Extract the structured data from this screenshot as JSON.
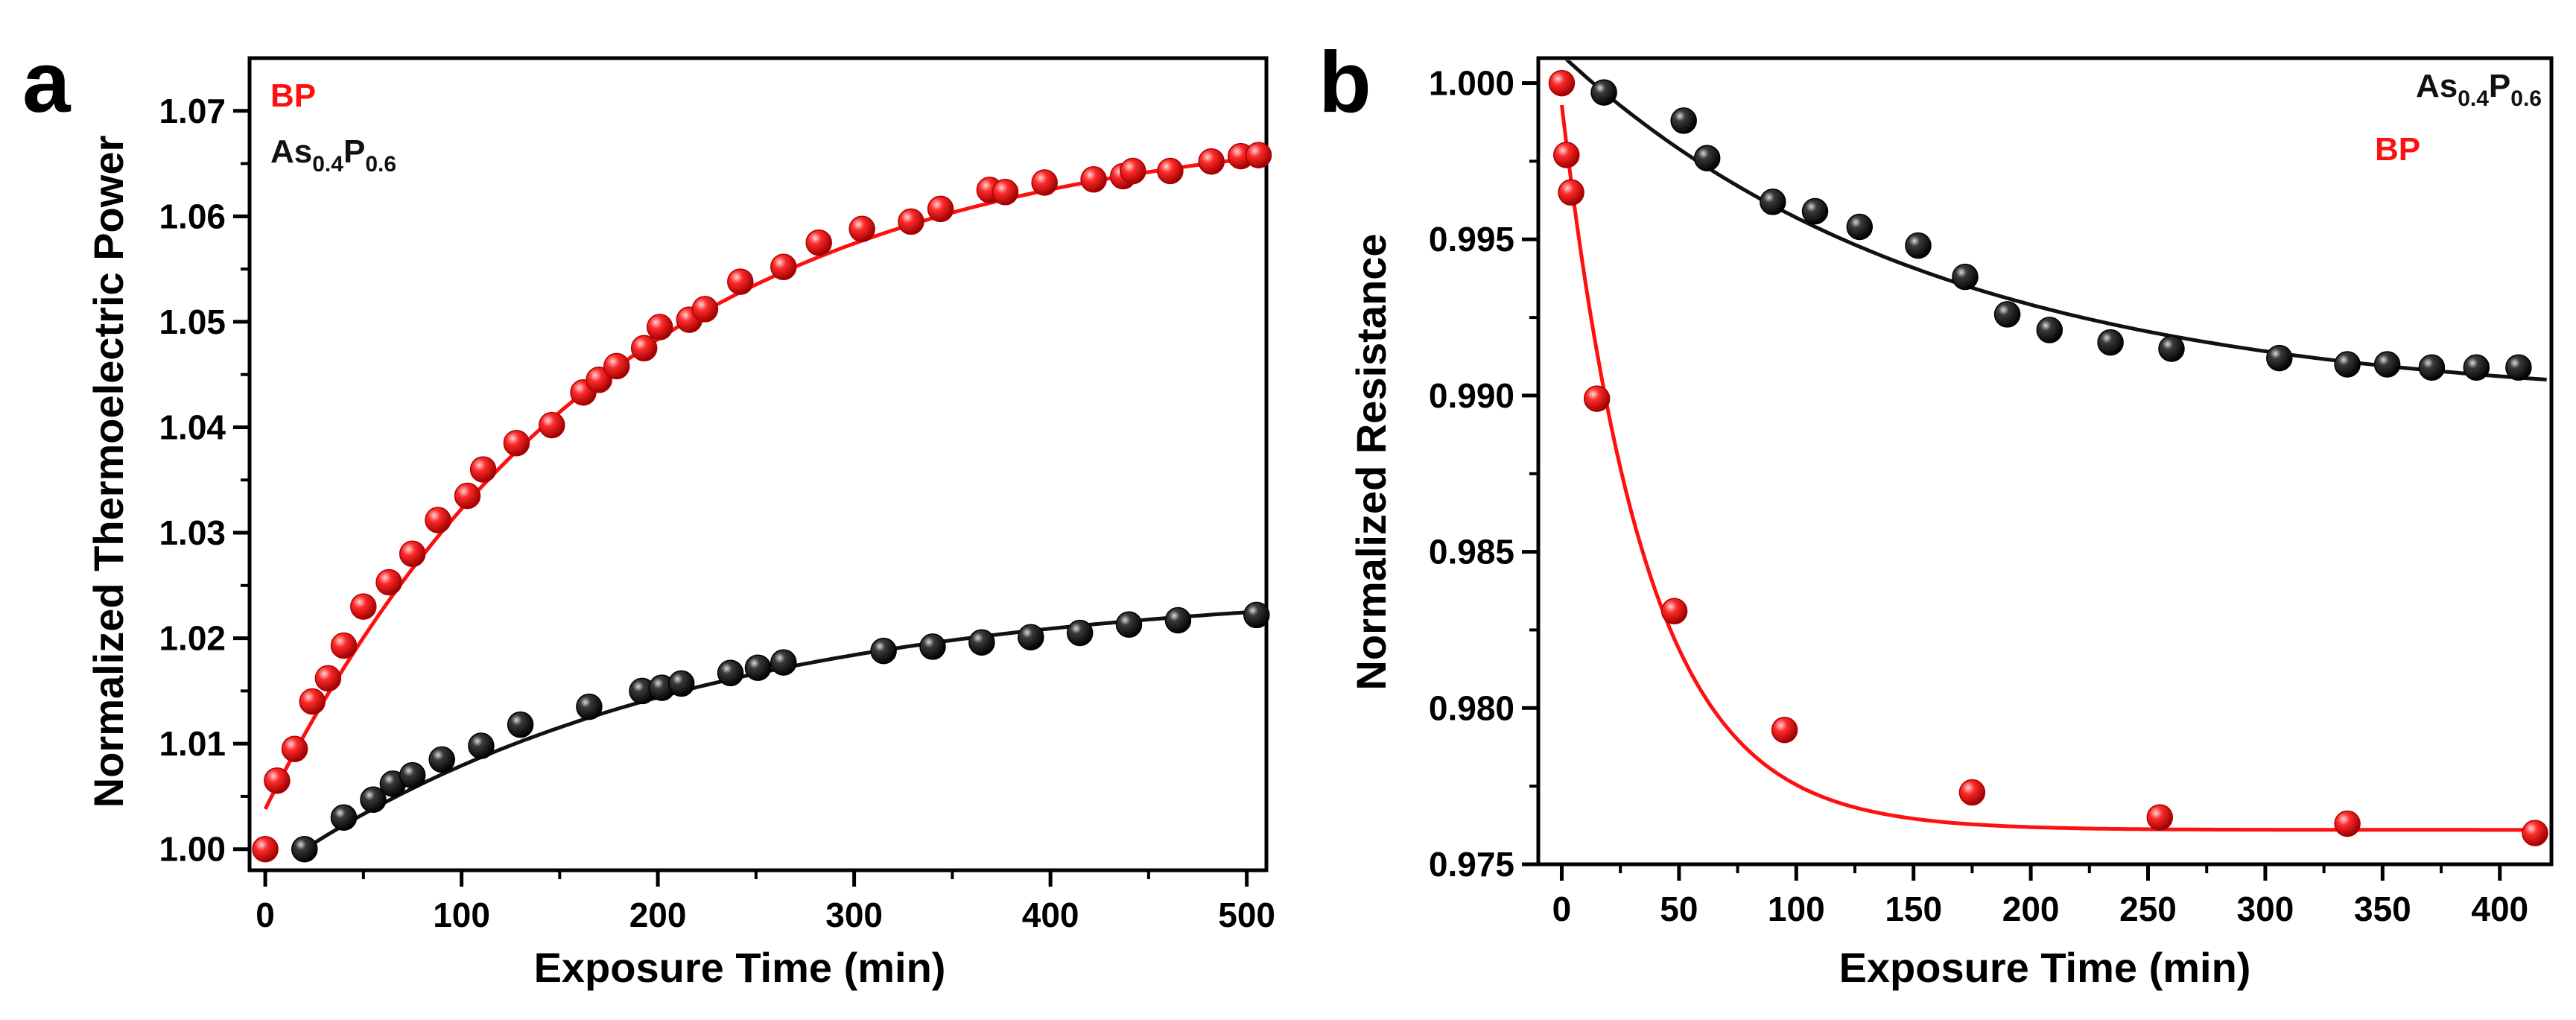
{
  "colors": {
    "bp": "#ff1010",
    "as": "#111111",
    "axis": "#000000"
  },
  "chart_data": [
    {
      "type": "scatter",
      "panel_label": "a",
      "xlabel": "Exposure Time (min)",
      "ylabel": "Normalized Thermoelectric Power",
      "xlim": [
        -8,
        510
      ],
      "ylim": [
        0.998,
        1.075
      ],
      "xticks": [
        0,
        100,
        200,
        300,
        400,
        500
      ],
      "yticks": [
        1.0,
        1.01,
        1.02,
        1.03,
        1.04,
        1.05,
        1.06,
        1.07
      ],
      "ytick_labels": [
        "1.00",
        "1.01",
        "1.02",
        "1.03",
        "1.04",
        "1.05",
        "1.06",
        "1.07"
      ],
      "legend_position": "top-left",
      "legend": [
        {
          "name": "BP",
          "sub": "",
          "tail": "",
          "tail_sub": "",
          "color_key": "bp"
        },
        {
          "name": "As",
          "sub": "0.4",
          "tail": "P",
          "tail_sub": "0.6",
          "color_key": "as"
        }
      ],
      "series": [
        {
          "name": "BP",
          "color_key": "bp",
          "fit": {
            "model": "rise",
            "a": 1.0038,
            "b": 0.0654,
            "tau": 175,
            "x0": 0,
            "x1": 505
          },
          "points": [
            [
              0,
              1.0
            ],
            [
              6,
              1.0065
            ],
            [
              15,
              1.0095
            ],
            [
              24,
              1.014
            ],
            [
              32,
              1.0162
            ],
            [
              40,
              1.0193
            ],
            [
              50,
              1.023
            ],
            [
              63,
              1.0253
            ],
            [
              75,
              1.028
            ],
            [
              88,
              1.0312
            ],
            [
              103,
              1.0335
            ],
            [
              111,
              1.036
            ],
            [
              128,
              1.0385
            ],
            [
              146,
              1.0402
            ],
            [
              162,
              1.0433
            ],
            [
              170,
              1.0445
            ],
            [
              179,
              1.0458
            ],
            [
              193,
              1.0475
            ],
            [
              201,
              1.0495
            ],
            [
              216,
              1.0502
            ],
            [
              224,
              1.0512
            ],
            [
              242,
              1.0538
            ],
            [
              264,
              1.0552
            ],
            [
              282,
              1.0575
            ],
            [
              304,
              1.0588
            ],
            [
              329,
              1.0595
            ],
            [
              344,
              1.0607
            ],
            [
              369,
              1.0625
            ],
            [
              377,
              1.0623
            ],
            [
              397,
              1.0632
            ],
            [
              422,
              1.0635
            ],
            [
              437,
              1.0638
            ],
            [
              442,
              1.0643
            ],
            [
              461,
              1.0643
            ],
            [
              482,
              1.0652
            ],
            [
              497,
              1.0657
            ],
            [
              506,
              1.0658
            ]
          ]
        },
        {
          "name": "As0.4P0.6",
          "color_key": "as",
          "fit": {
            "model": "rise",
            "a": 1.0,
            "b": 0.025,
            "tau": 210,
            "x0": 20,
            "x1": 505
          },
          "points": [
            [
              20,
              1.0
            ],
            [
              40,
              1.003
            ],
            [
              55,
              1.0047
            ],
            [
              65,
              1.0062
            ],
            [
              75,
              1.007
            ],
            [
              90,
              1.0085
            ],
            [
              110,
              1.0098
            ],
            [
              130,
              1.0118
            ],
            [
              165,
              1.0135
            ],
            [
              192,
              1.015
            ],
            [
              202,
              1.0153
            ],
            [
              212,
              1.0157
            ],
            [
              237,
              1.0167
            ],
            [
              251,
              1.0172
            ],
            [
              264,
              1.0177
            ],
            [
              315,
              1.0188
            ],
            [
              340,
              1.0192
            ],
            [
              365,
              1.0196
            ],
            [
              390,
              1.0201
            ],
            [
              415,
              1.0205
            ],
            [
              440,
              1.0213
            ],
            [
              465,
              1.0217
            ],
            [
              505,
              1.0222
            ]
          ]
        }
      ]
    },
    {
      "type": "scatter",
      "panel_label": "b",
      "xlabel": "Exposure Time (min)",
      "ylabel": "Normalized Resistance",
      "xlim": [
        -10,
        422
      ],
      "ylim": [
        0.975,
        1.0008
      ],
      "xticks": [
        0,
        50,
        100,
        150,
        200,
        250,
        300,
        350,
        400
      ],
      "yticks": [
        0.975,
        0.98,
        0.985,
        0.99,
        0.995,
        1.0
      ],
      "ytick_labels": [
        "0.975",
        "0.980",
        "0.985",
        "0.990",
        "0.995",
        "1.000"
      ],
      "legend_position": "top-right",
      "legend": [
        {
          "name": "As",
          "sub": "0.4",
          "tail": "P",
          "tail_sub": "0.6",
          "color_key": "as"
        },
        {
          "name": "BP",
          "sub": "",
          "tail": "",
          "tail_sub": "",
          "color_key": "bp"
        }
      ],
      "series": [
        {
          "name": "BP",
          "color_key": "bp",
          "fit": {
            "model": "decay",
            "a": 0.9761,
            "b": 0.0232,
            "tau": 36,
            "x0": 0,
            "x1": 420
          },
          "points": [
            [
              0,
              1.0
            ],
            [
              2,
              0.9977
            ],
            [
              4,
              0.9965
            ],
            [
              15,
              0.9899
            ],
            [
              48,
              0.9831
            ],
            [
              95,
              0.9793
            ],
            [
              175,
              0.9773
            ],
            [
              255,
              0.9765
            ],
            [
              335,
              0.9763
            ],
            [
              415,
              0.976
            ]
          ]
        },
        {
          "name": "As0.4P0.6",
          "color_key": "as",
          "fit": {
            "model": "decay",
            "a": 0.9897,
            "b": 0.0112,
            "tau": 160,
            "x0": 0,
            "x1": 420
          },
          "points": [
            [
              18,
              0.9997
            ],
            [
              52,
              0.9988
            ],
            [
              62,
              0.9976
            ],
            [
              90,
              0.9962
            ],
            [
              108,
              0.9959
            ],
            [
              127,
              0.9954
            ],
            [
              152,
              0.9948
            ],
            [
              172,
              0.9938
            ],
            [
              190,
              0.9926
            ],
            [
              208,
              0.9921
            ],
            [
              234,
              0.9917
            ],
            [
              260,
              0.9915
            ],
            [
              306,
              0.9912
            ],
            [
              335,
              0.991
            ],
            [
              352,
              0.991
            ],
            [
              371,
              0.9909
            ],
            [
              390,
              0.9909
            ],
            [
              408,
              0.9909
            ]
          ]
        }
      ]
    }
  ]
}
